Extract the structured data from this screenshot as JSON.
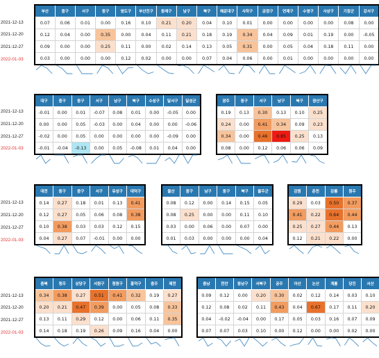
{
  "blocks": [
    {
      "id": "busan",
      "headers": [
        "부산",
        "중구",
        "서구",
        "동구",
        "영도구",
        "부산진구",
        "동래구",
        "남구",
        "북구",
        "해운대구",
        "사하구",
        "금정구",
        "연제구",
        "수영구",
        "사상구",
        "기장군",
        "강서구"
      ],
      "rows": [
        [
          "0.07",
          "0.06",
          "0.01",
          "0.00",
          "0.16",
          "0.10",
          "0.21",
          "0.20",
          "0.04",
          "0.10",
          "0.01",
          "0.00",
          "0.00",
          "0.00",
          "0.00",
          "0.08",
          "0.00"
        ],
        [
          "0.12",
          "0.04",
          "0.00",
          "0.35",
          "0.00",
          "0.04",
          "0.11",
          "0.21",
          "0.18",
          "0.19",
          "0.34",
          "0.04",
          "0.09",
          "0.01",
          "0.19",
          "0.00",
          "-0.05"
        ],
        [
          "0.09",
          "0.00",
          "0.00",
          "0.25",
          "0.11",
          "0.00",
          "0.02",
          "0.14",
          "0.13",
          "0.05",
          "0.31",
          "0.00",
          "0.05",
          "0.04",
          "0.18",
          "0.11",
          "0.00"
        ],
        [
          "0.03",
          "0.00",
          "0.00",
          "0.00",
          "0.12",
          "0.02",
          "0.00",
          "0.00",
          "0.07",
          "0.04",
          "0.06",
          "0.00",
          "0.01",
          "0.00",
          "0.00",
          "0.00",
          "0.00"
        ]
      ]
    },
    {
      "id": "daegu",
      "headers": [
        "대구",
        "중구",
        "동구",
        "서구",
        "남구",
        "북구",
        "수성구",
        "달서구",
        "달성군"
      ],
      "rows": [
        [
          "-0.01",
          "0.00",
          "0.01",
          "-0.07",
          "0.08",
          "0.01",
          "0.00",
          "-0.05",
          "0.00"
        ],
        [
          "0.00",
          "0.00",
          "0.05",
          "-0.03",
          "0.00",
          "0.04",
          "0.00",
          "0.00",
          "-0.06"
        ],
        [
          "-0.02",
          "0.00",
          "0.05",
          "0.00",
          "0.00",
          "0.00",
          "0.00",
          "-0.09",
          "0.00"
        ],
        [
          "-0.01",
          "-0.04",
          "-0.13",
          "0.00",
          "0.05",
          "-0.08",
          "0.01",
          "0.04",
          "0.00"
        ]
      ]
    },
    {
      "id": "gwangju",
      "headers": [
        "광주",
        "동구",
        "서구",
        "남구",
        "북구",
        "광산구"
      ],
      "rows": [
        [
          "0.19",
          "0.13",
          "0.30",
          "0.13",
          "0.10",
          "0.25"
        ],
        [
          "0.24",
          "0.00",
          "0.41",
          "0.34",
          "0.09",
          "0.23"
        ],
        [
          "0.34",
          "0.00",
          "0.46",
          "0.85",
          "0.25",
          "0.13"
        ],
        [
          "0.08",
          "0.00",
          "0.12",
          "0.06",
          "0.06",
          "0.09"
        ]
      ]
    },
    {
      "id": "daejeon",
      "headers": [
        "대전",
        "동구",
        "중구",
        "서구",
        "유성구",
        "대덕구"
      ],
      "rows": [
        [
          "0.14",
          "0.27",
          "0.18",
          "0.01",
          "0.13",
          "0.41"
        ],
        [
          "0.12",
          "0.27",
          "0.05",
          "0.06",
          "0.08",
          "0.38"
        ],
        [
          "0.10",
          "0.38",
          "0.03",
          "0.03",
          "0.12",
          "0.15"
        ],
        [
          "0.04",
          "0.27",
          "0.07",
          "-0.01",
          "0.00",
          "0.00"
        ]
      ]
    },
    {
      "id": "ulsan",
      "headers": [
        "울산",
        "중구",
        "남구",
        "동구",
        "북구",
        "울주군"
      ],
      "rows": [
        [
          "0.08",
          "0.12",
          "0.00",
          "0.14",
          "0.15",
          "0.05"
        ],
        [
          "0.08",
          "0.25",
          "0.00",
          "0.00",
          "0.11",
          "0.10"
        ],
        [
          "0.03",
          "0.00",
          "0.06",
          "0.00",
          "0.07",
          "0.00"
        ],
        [
          "0.01",
          "0.03",
          "0.00",
          "0.00",
          "0.00",
          "0.04"
        ]
      ]
    },
    {
      "id": "gangwon",
      "headers": [
        "강원",
        "춘천",
        "강릉",
        "원주"
      ],
      "rows": [
        [
          "0.29",
          "0.03",
          "0.50",
          "0.37"
        ],
        [
          "0.41",
          "0.22",
          "0.64",
          "0.44"
        ],
        [
          "0.25",
          "0.27",
          "0.44",
          "0.13"
        ],
        [
          "0.12",
          "0.21",
          "0.22",
          "0.00"
        ]
      ]
    },
    {
      "id": "chungbuk",
      "headers": [
        "충북",
        "청주",
        "상당구",
        "서원구",
        "청원구",
        "흥덕구",
        "충주",
        "제천"
      ],
      "rows": [
        [
          "0.34",
          "0.38",
          "0.27",
          "0.51",
          "0.41",
          "0.32",
          "0.19",
          "0.27"
        ],
        [
          "0.20",
          "0.21",
          "0.47",
          "0.39",
          "0.00",
          "0.05",
          "0.08",
          "0.33"
        ],
        [
          "0.13",
          "0.11",
          "0.29",
          "0.12",
          "0.00",
          "0.06",
          "0.11",
          "0.35"
        ],
        [
          "0.14",
          "0.18",
          "0.19",
          "0.26",
          "0.09",
          "0.16",
          "0.04",
          "0.00"
        ]
      ]
    },
    {
      "id": "chungnam",
      "headers": [
        "충남",
        "천안",
        "동남구",
        "서북구",
        "공주",
        "아산",
        "논산",
        "계룡",
        "당진",
        "서산"
      ],
      "rows": [
        [
          "0.09",
          "0.12",
          "0.00",
          "0.20",
          "0.30",
          "0.02",
          "0.12",
          "0.14",
          "0.03",
          "0.10"
        ],
        [
          "0.12",
          "0.08",
          "0.02",
          "0.11",
          "0.43",
          "0.04",
          "0.67",
          "0.17",
          "0.11",
          "0.20"
        ],
        [
          "0.04",
          "-0.02",
          "-0.04",
          "0.00",
          "0.17",
          "0.05",
          "0.03",
          "0.16",
          "0.07",
          "0.09"
        ],
        [
          "0.07",
          "0.07",
          "0.03",
          "0.10",
          "0.00",
          "0.12",
          "0.00",
          "0.00",
          "0.02",
          "0.00"
        ]
      ]
    }
  ],
  "dates": [
    "2021-12-13",
    "2021-12-20",
    "2021-12-27",
    "2022-01-03"
  ],
  "colors": {
    "header": "#2a78b0",
    "latest_date": "#e53030",
    "sparkline": "#4a8ec4"
  }
}
